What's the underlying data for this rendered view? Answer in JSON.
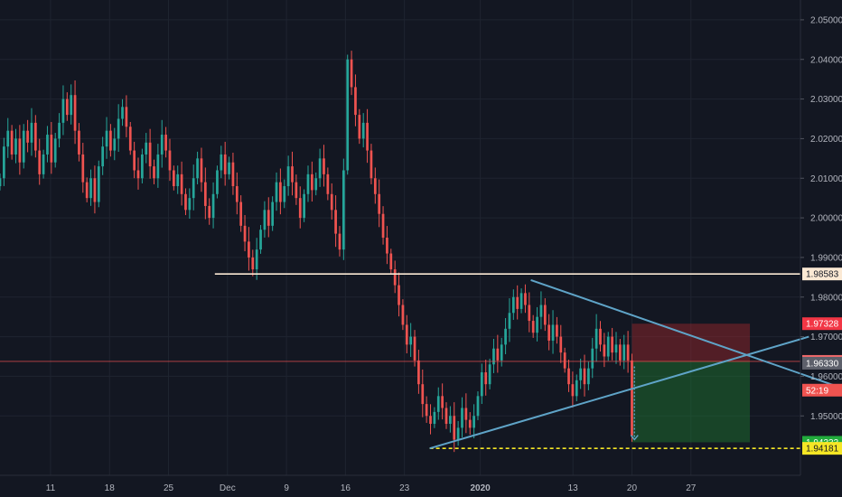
{
  "chart_data": {
    "type": "candlestick",
    "x_ticks": [
      {
        "label": "11",
        "day": 11
      },
      {
        "label": "18",
        "day": 18
      },
      {
        "label": "25",
        "day": 25
      },
      {
        "label": "Dec",
        "day": 32
      },
      {
        "label": "9",
        "day": 39
      },
      {
        "label": "16",
        "day": 46
      },
      {
        "label": "23",
        "day": 53
      },
      {
        "label": "2020",
        "day": 62,
        "bold": true
      },
      {
        "label": "13",
        "day": 73
      },
      {
        "label": "20",
        "day": 80
      },
      {
        "label": "27",
        "day": 87
      }
    ],
    "xlim": [
      5,
      100
    ],
    "ylim": [
      1.935,
      2.055
    ],
    "y_ticks": [
      "2.05000",
      "2.04000",
      "2.03000",
      "2.02000",
      "2.01000",
      "2.00000",
      "1.99000",
      "1.98000",
      "1.97000",
      "1.96000",
      "1.95000"
    ],
    "grid": true,
    "candles_close": [
      2.01,
      2.018,
      2.022,
      2.016,
      2.02,
      2.014,
      2.022,
      2.019,
      2.024,
      2.017,
      2.011,
      2.016,
      2.021,
      2.014,
      2.02,
      2.024,
      2.03,
      2.026,
      2.031,
      2.022,
      2.016,
      2.009,
      2.005,
      2.01,
      2.004,
      2.013,
      2.018,
      2.022,
      2.017,
      2.02,
      2.025,
      2.028,
      2.023,
      2.017,
      2.012,
      2.01,
      2.016,
      2.019,
      2.013,
      2.01,
      2.016,
      2.021,
      2.017,
      2.012,
      2.008,
      2.011,
      2.006,
      2.002,
      2.005,
      2.01,
      2.015,
      2.009,
      2.003,
      2.0,
      2.006,
      2.012,
      2.016,
      2.011,
      2.014,
      2.008,
      2.004,
      1.998,
      1.994,
      1.99,
      1.987,
      1.992,
      1.997,
      2.002,
      1.998,
      2.004,
      2.009,
      2.004,
      2.008,
      2.013,
      2.009,
      2.005,
      2.0,
      2.006,
      2.011,
      2.007,
      2.01,
      2.015,
      2.011,
      2.006,
      2.002,
      1.996,
      1.992,
      2.012,
      2.04,
      2.033,
      2.026,
      2.02,
      2.024,
      2.017,
      2.01,
      2.006,
      2.001,
      1.995,
      1.991,
      1.987,
      1.983,
      1.978,
      1.973,
      1.968,
      1.97,
      1.964,
      1.958,
      1.953,
      1.95,
      1.948,
      1.951,
      1.955,
      1.952,
      1.948,
      1.95,
      1.944,
      1.947,
      1.952,
      1.949,
      1.947,
      1.95,
      1.955,
      1.961,
      1.958,
      1.963,
      1.967,
      1.964,
      1.968,
      1.972,
      1.976,
      1.98,
      1.977,
      1.981,
      1.978,
      1.974,
      1.971,
      1.975,
      1.978,
      1.973,
      1.969,
      1.973,
      1.97,
      1.966,
      1.962,
      1.958,
      1.955,
      1.959,
      1.962,
      1.958,
      1.962,
      1.967,
      1.972,
      1.968,
      1.965,
      1.97,
      1.966,
      1.968,
      1.964,
      1.968,
      1.964,
      1.945
    ],
    "resistance_level": {
      "label": "1.98583",
      "value": 1.98583
    },
    "current_price": {
      "label": "1.96376",
      "value": 1.96376
    },
    "stop_loss": {
      "label": "1.97328",
      "value": 1.97328
    },
    "take_profit": {
      "label": "1.94333",
      "value": 1.94333
    },
    "support_level": {
      "label": "1.94181",
      "value": 1.94181
    },
    "countdown": {
      "label": "52:19",
      "value": 1.9565
    },
    "crosshair_price": {
      "label": "1.96330",
      "value": 1.9633
    },
    "triangle": {
      "upper": {
        "start": [
          68.0,
          1.9843
        ],
        "end": [
          107.0,
          1.9555
        ]
      },
      "lower": {
        "start": [
          56.0,
          1.9418
        ],
        "end": [
          101.0,
          1.97
        ]
      }
    },
    "position": {
      "entry": 1.96376,
      "stop": 1.97328,
      "target": 1.94333,
      "start_day": 80.0,
      "end_day": 94.0
    },
    "colors": {
      "bull": "#26a69a",
      "bear": "#ef5350",
      "background": "#131722",
      "grid": "#1f2430",
      "resistance": "#fbe9d4",
      "support": "#f5e625",
      "triangle": "#5fa4c8",
      "stop_zone": "rgba(170,40,45,0.42)",
      "target_zone": "rgba(30,130,50,0.42)",
      "stop_tag": "#f23645",
      "current_tag": "#f0696a",
      "target_tag": "#22ab3c",
      "support_tag": "#f5e625",
      "countdown_tag": "#ef5350",
      "crosshair_tag": "#5d606b"
    }
  }
}
